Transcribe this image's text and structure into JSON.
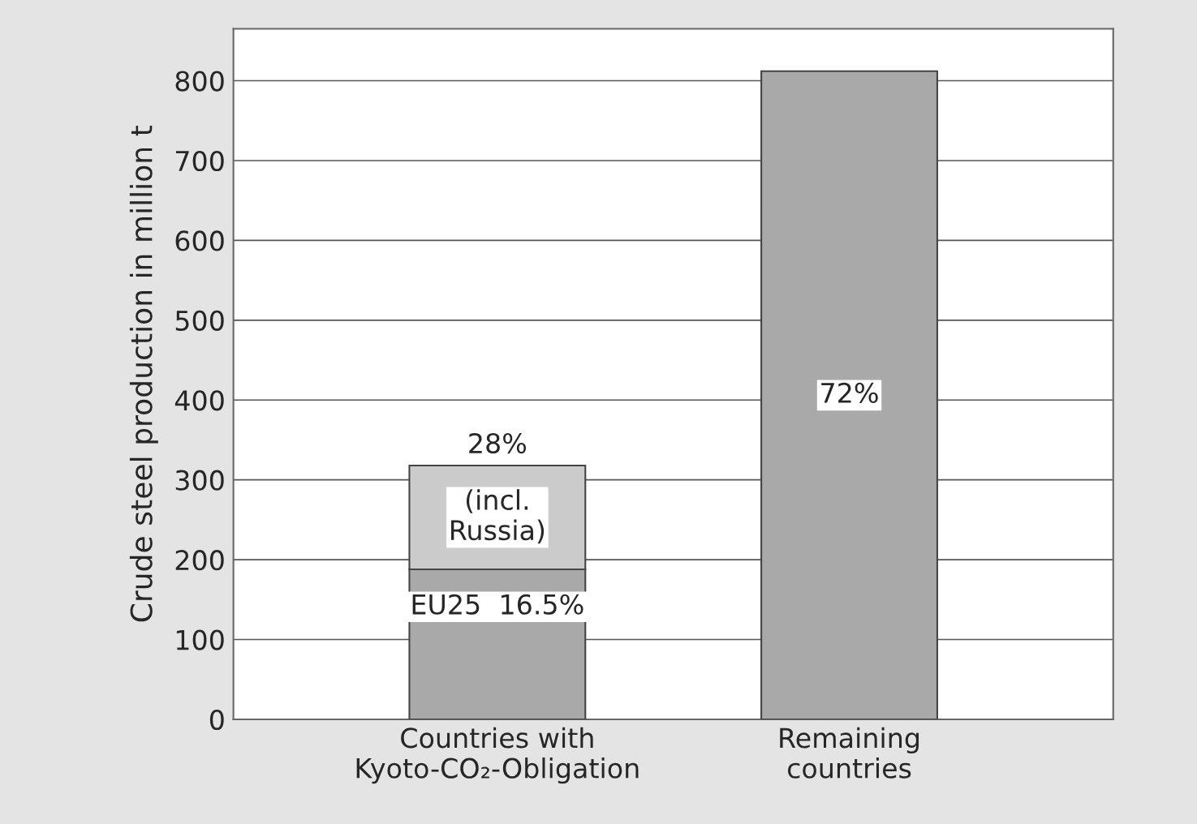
{
  "chart_data": {
    "type": "bar",
    "stacked": true,
    "ylabel": "Crude steel production in million t",
    "categories": [
      "Countries with\nKyoto-CO₂-Obligation",
      "Remaining\ncountries"
    ],
    "series": [
      {
        "color": "#a9a9a9",
        "values": [
          188,
          812
        ]
      },
      {
        "color": "#cbcbcb",
        "values": [
          130,
          null
        ]
      }
    ],
    "annotations": [
      "28%",
      "(incl.\nRussia)",
      "EU25  16.5%",
      "72%"
    ],
    "ylim": [
      0,
      865
    ],
    "yticks": [
      0,
      100,
      200,
      300,
      400,
      500,
      600,
      700,
      800
    ],
    "grid": "y"
  }
}
